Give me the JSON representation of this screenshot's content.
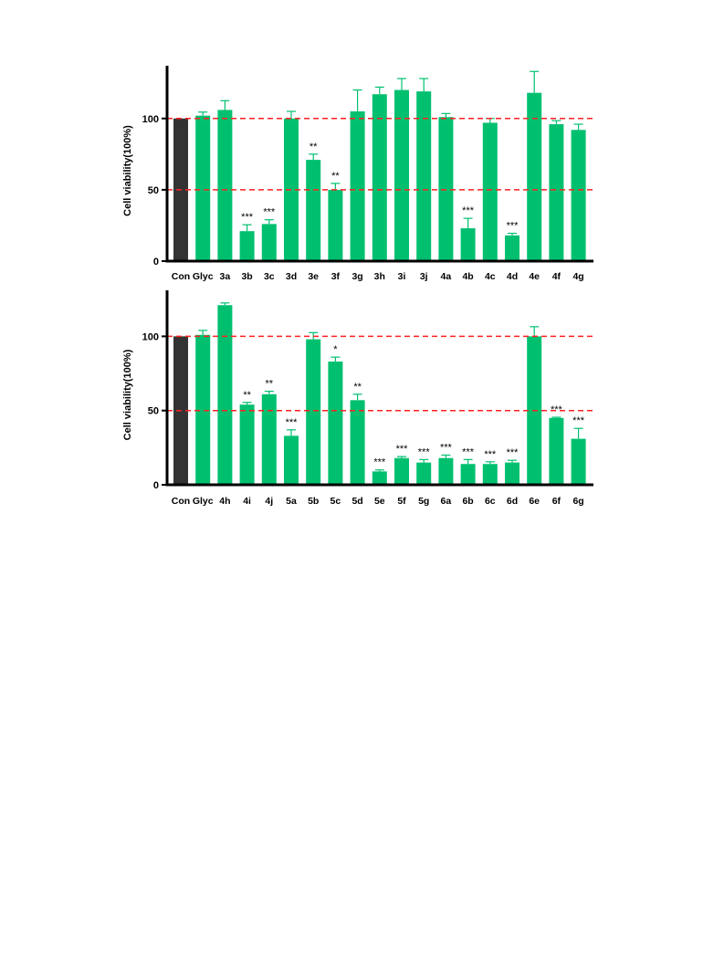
{
  "chart_data": [
    {
      "type": "bar",
      "ylabel": "Cell viability(100%)",
      "ylim": [
        0,
        137
      ],
      "yticks": [
        0,
        50,
        100
      ],
      "reference_lines": [
        50,
        100
      ],
      "grid": false,
      "categories": [
        "Con",
        "Glyc",
        "3a",
        "3b",
        "3c",
        "3d",
        "3e",
        "3f",
        "3g",
        "3h",
        "3i",
        "3j",
        "4a",
        "4b",
        "4c",
        "4d",
        "4e",
        "4f",
        "4g"
      ],
      "values": [
        100,
        102,
        106,
        21,
        26,
        100,
        71,
        50,
        105,
        117,
        120,
        119,
        101,
        23,
        97,
        18,
        118,
        96,
        92
      ],
      "errors": [
        0,
        2.5,
        6.5,
        4.5,
        3,
        5,
        4,
        4.5,
        15,
        5,
        8,
        9,
        2.5,
        7,
        3,
        1.5,
        15,
        2.5,
        4
      ],
      "significance": [
        "",
        "",
        "",
        "***",
        "***",
        "",
        "**",
        "**",
        "",
        "",
        "",
        "",
        "",
        "***",
        "",
        "***",
        "",
        "",
        ""
      ],
      "colors": {
        "control": "#333333",
        "treatment": "#00c070",
        "reference_line": "#ff2020"
      }
    },
    {
      "type": "bar",
      "ylabel": "Cell viability(100%)",
      "ylim": [
        0,
        131
      ],
      "yticks": [
        0,
        50,
        100
      ],
      "reference_lines": [
        50,
        100
      ],
      "grid": false,
      "categories": [
        "Con",
        "Glyc",
        "4h",
        "4i",
        "4j",
        "5a",
        "5b",
        "5c",
        "5d",
        "5e",
        "5f",
        "5g",
        "6a",
        "6b",
        "6c",
        "6d",
        "6e",
        "6f",
        "6g"
      ],
      "values": [
        100,
        101,
        121,
        54,
        61,
        33,
        98,
        83,
        57,
        9,
        18,
        15,
        18,
        14,
        14,
        15,
        100,
        45,
        31
      ],
      "errors": [
        0,
        3,
        1.5,
        1.5,
        2,
        4,
        4.5,
        3,
        4,
        1,
        1,
        2,
        2,
        3,
        1.5,
        1.5,
        6.5,
        0.5,
        7
      ],
      "significance": [
        "",
        "",
        "",
        "**",
        "**",
        "***",
        "",
        "*",
        "**",
        "***",
        "***",
        "***",
        "***",
        "***",
        "***",
        "***",
        "",
        "***",
        "***"
      ],
      "colors": {
        "control": "#333333",
        "treatment": "#00c070",
        "reference_line": "#ff2020"
      }
    }
  ]
}
